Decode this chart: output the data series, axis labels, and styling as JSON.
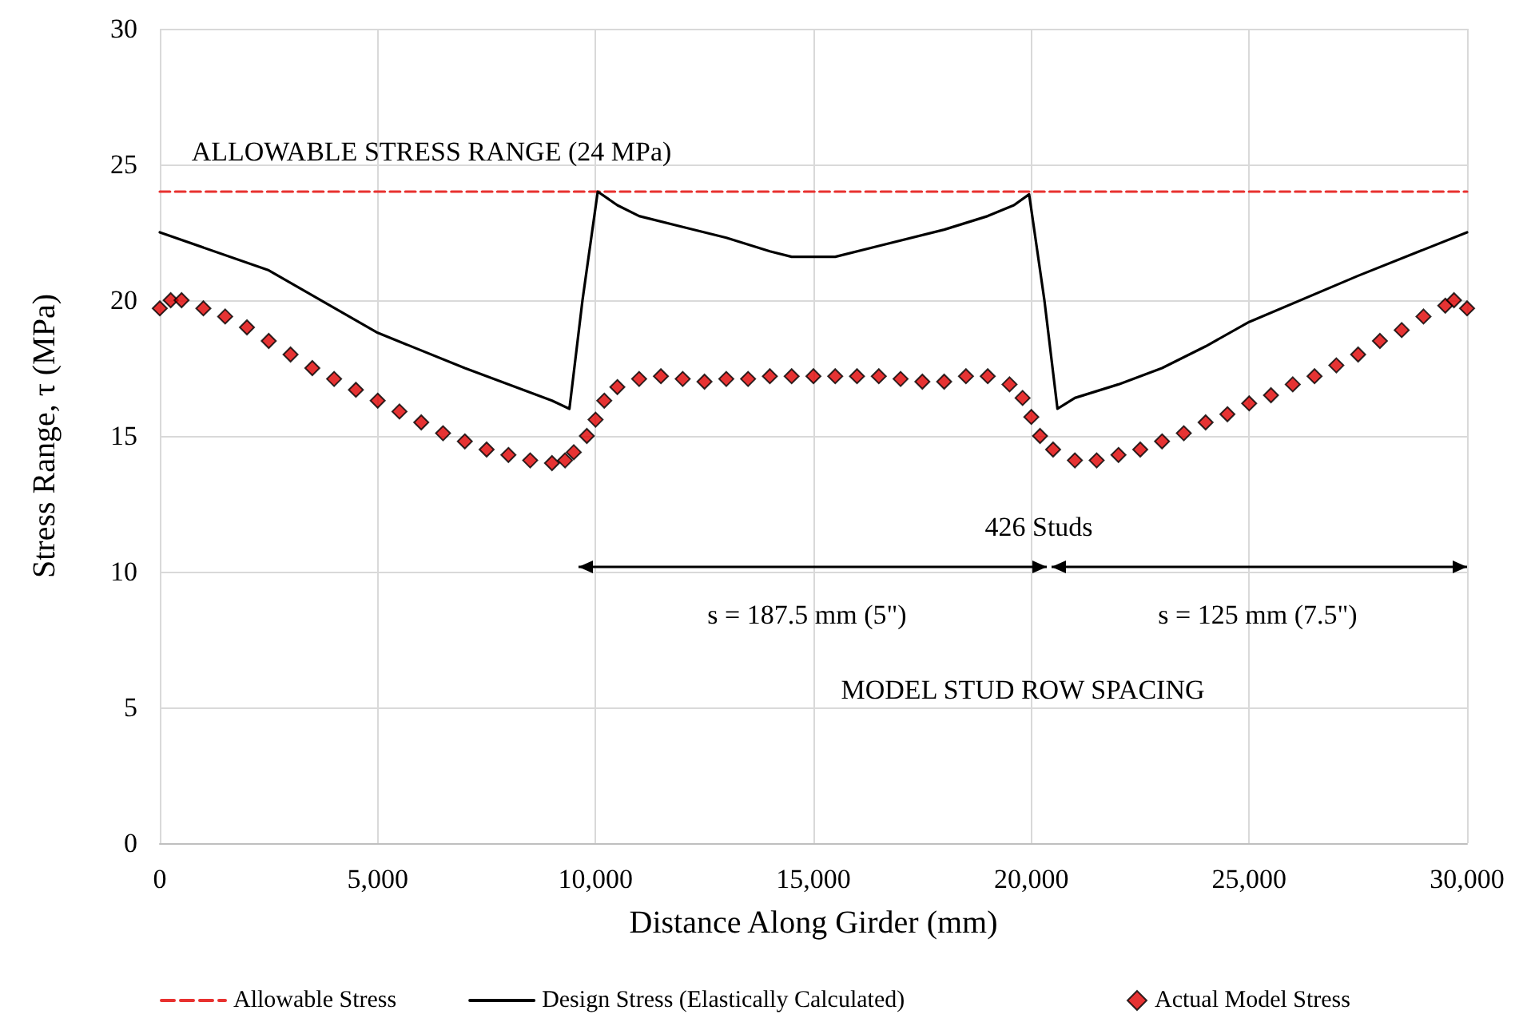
{
  "chart_data": {
    "type": "line",
    "xlabel": "Distance Along Girder (mm)",
    "ylabel": "Stress Range, τ (MPa)",
    "xlim": [
      0,
      30000
    ],
    "xticks": [
      {
        "value": 0,
        "label": "0"
      },
      {
        "value": 5000,
        "label": "5,000"
      },
      {
        "value": 10000,
        "label": "10,000"
      },
      {
        "value": 15000,
        "label": "15,000"
      },
      {
        "value": 20000,
        "label": "20,000"
      },
      {
        "value": 25000,
        "label": "25,000"
      },
      {
        "value": 30000,
        "label": "30,000"
      }
    ],
    "ylim": [
      0,
      30
    ],
    "yticks": [
      0,
      5,
      10,
      15,
      20,
      25,
      30
    ],
    "grid": true,
    "legend": "bottom",
    "series": [
      {
        "name": "Allowable Stress",
        "color": "#e8312f",
        "line_style": "dashed",
        "marker": "none",
        "x": [
          0,
          30000
        ],
        "values": [
          24,
          24
        ]
      },
      {
        "name": "Design Stress (Elastically Calculated)",
        "color": "#000000",
        "line_style": "solid",
        "marker": "none",
        "x": [
          0,
          2500,
          5000,
          7000,
          9000,
          9400,
          9700,
          10050,
          10500,
          11000,
          12000,
          13000,
          14000,
          14500,
          15500,
          16500,
          18000,
          19000,
          19600,
          19950,
          20300,
          20600,
          21000,
          22000,
          23000,
          24000,
          25000,
          27500,
          30000
        ],
        "values": [
          22.5,
          21.1,
          18.8,
          17.5,
          16.3,
          16.0,
          20.0,
          24.0,
          23.5,
          23.1,
          22.7,
          22.3,
          21.8,
          21.6,
          21.6,
          22.0,
          22.6,
          23.1,
          23.5,
          23.9,
          20.0,
          16.0,
          16.4,
          16.9,
          17.5,
          18.3,
          19.2,
          20.9,
          22.5
        ]
      },
      {
        "type": "scatter",
        "name": "Actual Model Stress",
        "color": "#e00000",
        "marker": "diamond",
        "x": [
          0,
          250,
          500,
          1000,
          1500,
          2000,
          2500,
          3000,
          3500,
          4000,
          4500,
          5000,
          5500,
          6000,
          6500,
          7000,
          7500,
          8000,
          8500,
          9000,
          9300,
          9500,
          9800,
          10000,
          10200,
          10500,
          11000,
          11500,
          12000,
          12500,
          13000,
          13500,
          14000,
          14500,
          15000,
          15500,
          16000,
          16500,
          17000,
          17500,
          18000,
          18500,
          19000,
          19500,
          19800,
          20000,
          20200,
          20500,
          21000,
          21500,
          22000,
          22500,
          23000,
          23500,
          24000,
          24500,
          25000,
          25500,
          26000,
          26500,
          27000,
          27500,
          28000,
          28500,
          29000,
          29500,
          29700,
          30000
        ],
        "values": [
          19.7,
          20.0,
          20.0,
          19.7,
          19.4,
          19.0,
          18.5,
          18.0,
          17.5,
          17.1,
          16.7,
          16.3,
          15.9,
          15.5,
          15.1,
          14.8,
          14.5,
          14.3,
          14.1,
          14.0,
          14.1,
          14.4,
          15.0,
          15.6,
          16.3,
          16.8,
          17.1,
          17.2,
          17.1,
          17.0,
          17.1,
          17.1,
          17.2,
          17.2,
          17.2,
          17.2,
          17.2,
          17.2,
          17.1,
          17.0,
          17.0,
          17.2,
          17.2,
          16.9,
          16.4,
          15.7,
          15.0,
          14.5,
          14.1,
          14.1,
          14.3,
          14.5,
          14.8,
          15.1,
          15.5,
          15.8,
          16.2,
          16.5,
          16.9,
          17.2,
          17.6,
          18.0,
          18.5,
          18.9,
          19.4,
          19.8,
          20.0,
          19.7
        ]
      }
    ],
    "annotations": [
      "ALLOWABLE STRESS RANGE (24 MPa)",
      "426 Studs",
      "s = 187.5 mm (5\")",
      "s = 125 mm (7.5\")",
      "MODEL STUD ROW SPACING"
    ]
  }
}
